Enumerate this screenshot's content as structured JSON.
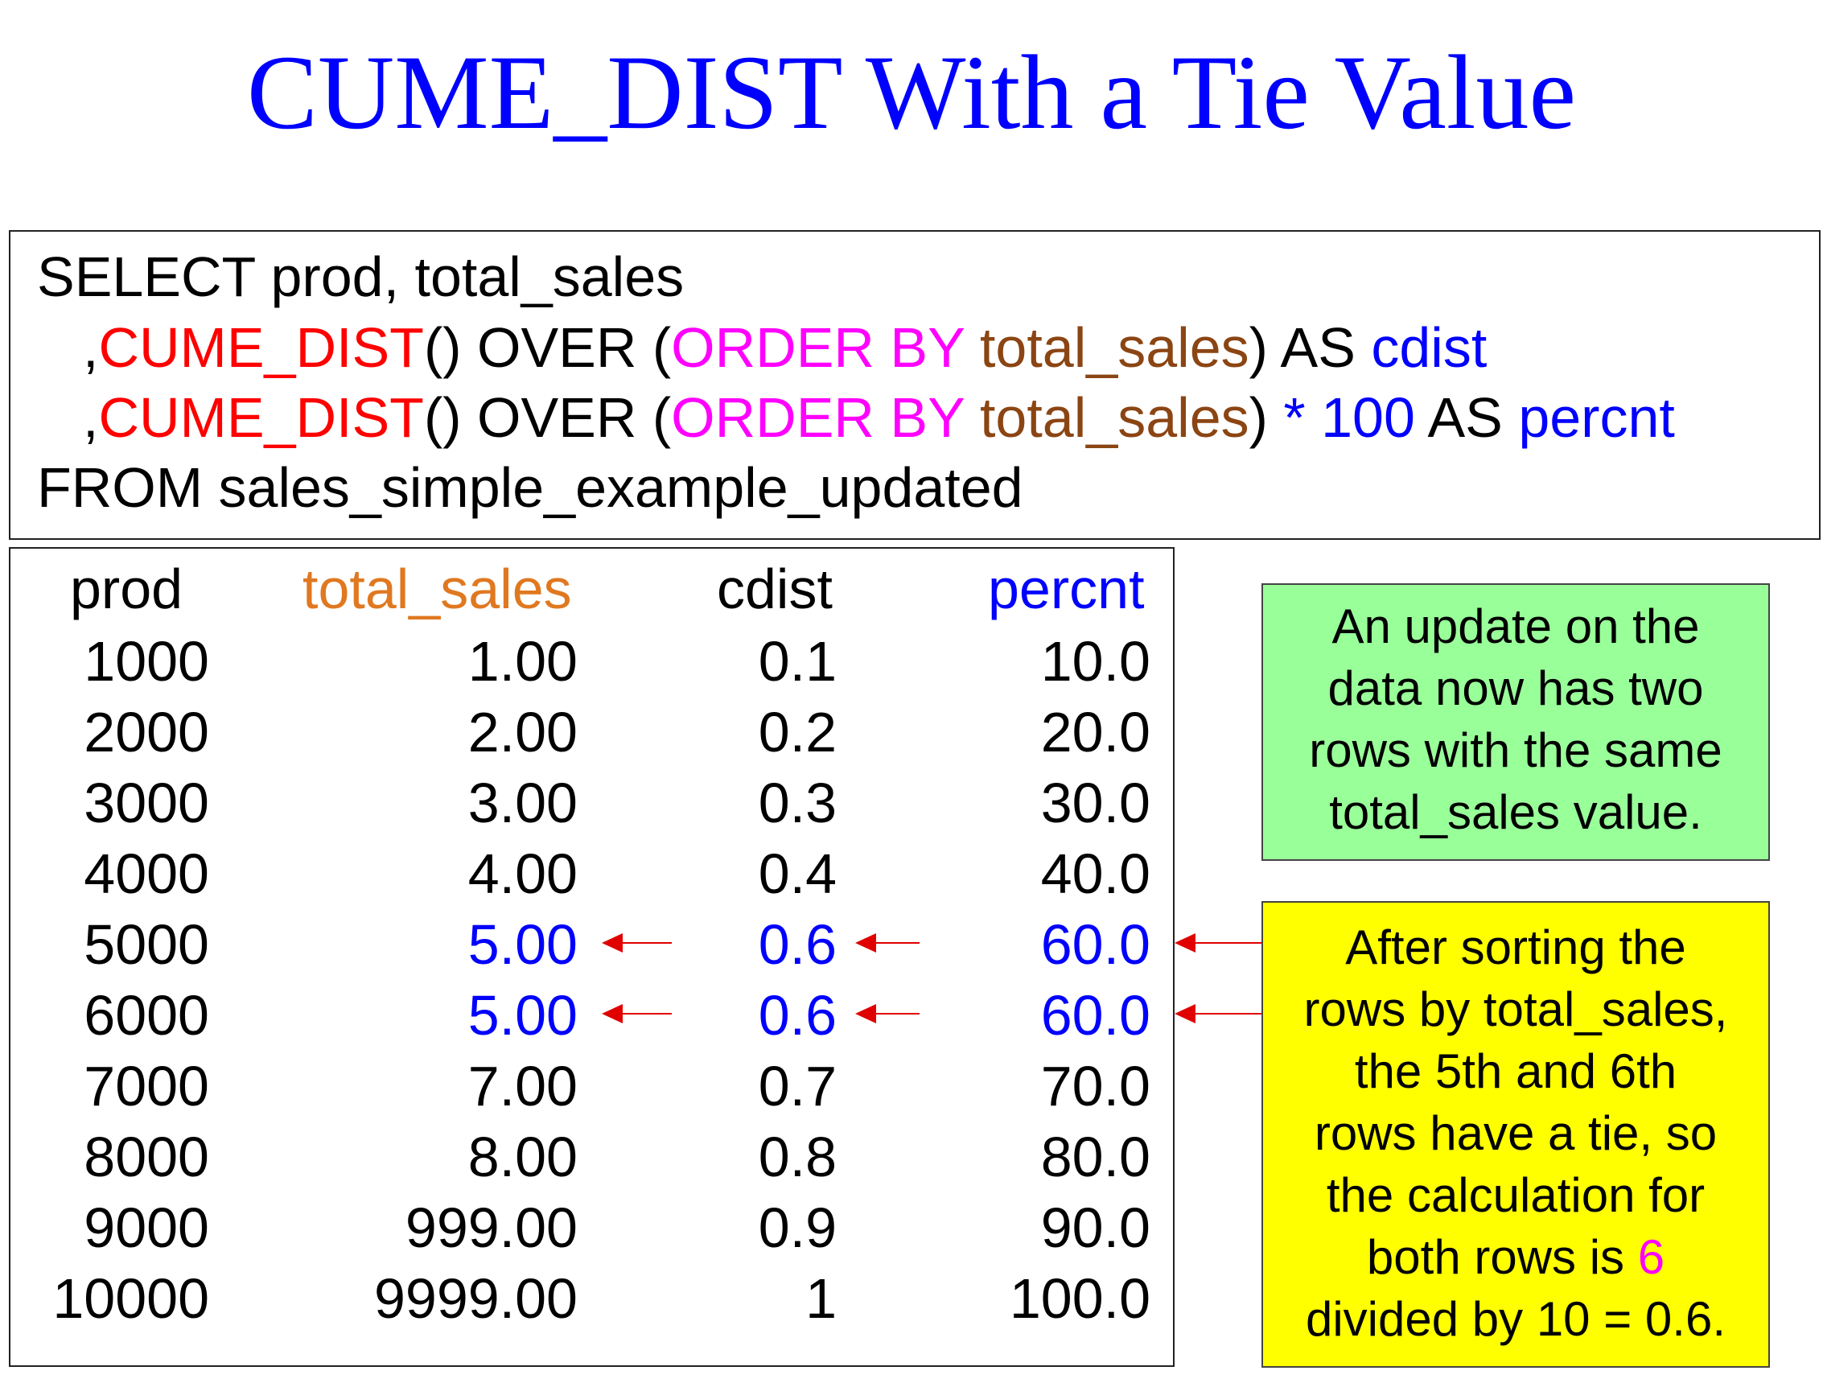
{
  "title": "CUME_DIST With a Tie Value",
  "colors": {
    "title": "#0000ff",
    "function": "#ff0000",
    "keyword": "#ff00ff",
    "column": "#8b4513",
    "alias": "#0000ff",
    "header_total_sales": "#e07820",
    "highlight": "#0000ff",
    "arrow": "#e00000",
    "green_note_bg": "#99ff99",
    "yellow_note_bg": "#ffff00"
  },
  "sql": {
    "line1": "SELECT prod, total_sales",
    "line2": {
      "comma": ",",
      "func": "CUME_DIST",
      "parens": "() OVER (",
      "order_by": "ORDER BY",
      "column": "total_sales",
      "close": ") AS",
      "alias": "cdist"
    },
    "line3": {
      "comma": ",",
      "func": "CUME_DIST",
      "parens": "() OVER (",
      "order_by": "ORDER BY",
      "column": "total_sales",
      "close": ")",
      "multiply": "* 100",
      "as": "AS",
      "alias": "percnt"
    },
    "line4": "FROM sales_simple_example_updated"
  },
  "table": {
    "headers": {
      "prod": "prod",
      "total_sales": "total_sales",
      "cdist": "cdist",
      "percnt": "percnt"
    },
    "rows": [
      {
        "prod": "1000",
        "total_sales": "1.00",
        "cdist": "0.1",
        "percnt": "10.0",
        "tie": false
      },
      {
        "prod": "2000",
        "total_sales": "2.00",
        "cdist": "0.2",
        "percnt": "20.0",
        "tie": false
      },
      {
        "prod": "3000",
        "total_sales": "3.00",
        "cdist": "0.3",
        "percnt": "30.0",
        "tie": false
      },
      {
        "prod": "4000",
        "total_sales": "4.00",
        "cdist": "0.4",
        "percnt": "40.0",
        "tie": false
      },
      {
        "prod": "5000",
        "total_sales": "5.00",
        "cdist": "0.6",
        "percnt": "60.0",
        "tie": true
      },
      {
        "prod": "6000",
        "total_sales": "5.00",
        "cdist": "0.6",
        "percnt": "60.0",
        "tie": true
      },
      {
        "prod": "7000",
        "total_sales": "7.00",
        "cdist": "0.7",
        "percnt": "70.0",
        "tie": false
      },
      {
        "prod": "8000",
        "total_sales": "8.00",
        "cdist": "0.8",
        "percnt": "80.0",
        "tie": false
      },
      {
        "prod": "9000",
        "total_sales": "999.00",
        "cdist": "0.9",
        "percnt": "90.0",
        "tie": false
      },
      {
        "prod": "10000",
        "total_sales": "9999.00",
        "cdist": "1",
        "percnt": "100.0",
        "tie": false
      }
    ]
  },
  "notes": {
    "green": [
      "An update on the",
      "data now has two",
      "rows with the same",
      "total_sales value."
    ],
    "yellow": {
      "lines": [
        "After sorting the",
        "rows by total_sales,",
        "the 5th and 6th",
        "rows have a tie, so",
        "the calculation for"
      ],
      "line6_pre": "both rows is ",
      "line6_num": "6",
      "line7": "divided by 10 = 0.6."
    }
  }
}
